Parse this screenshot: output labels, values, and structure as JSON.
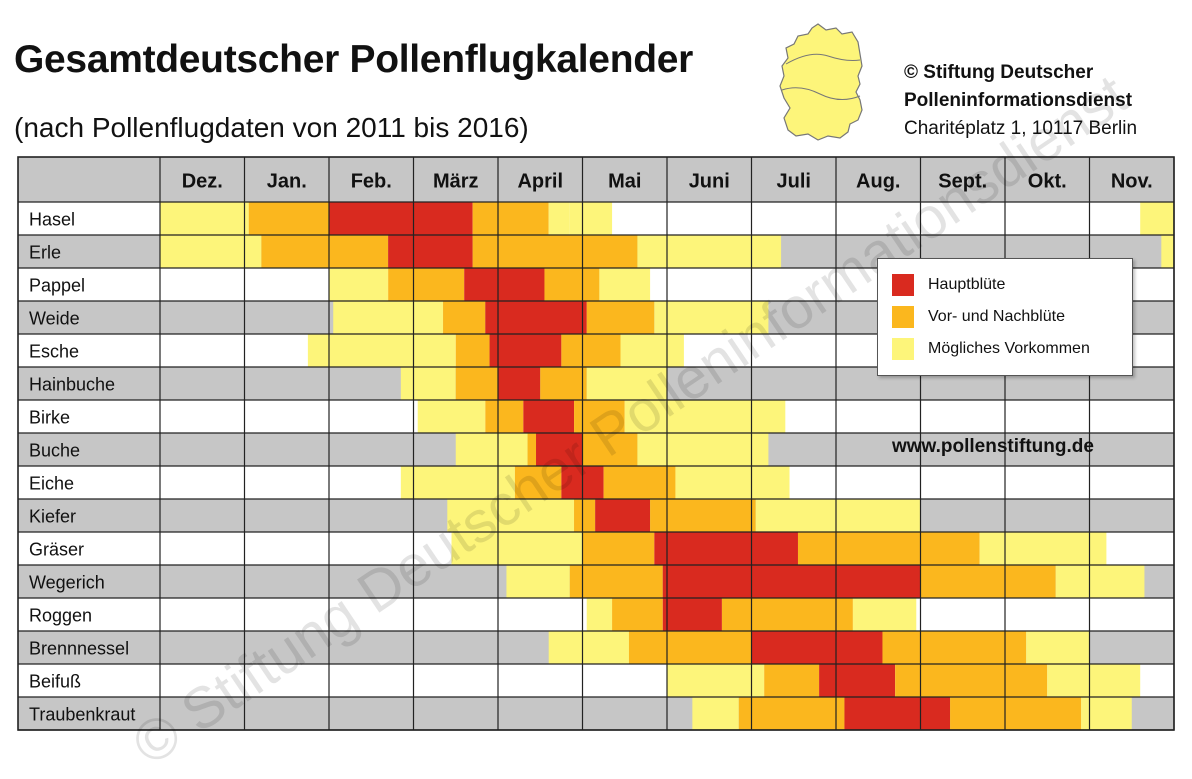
{
  "header": {
    "title": "Gesamtdeutscher Pollenflugkalender",
    "subtitle": "(nach Pollenflugdaten von 2011 bis 2016)",
    "copyright_line1": "© Stiftung Deutscher",
    "copyright_line2": "Polleninformationsdienst",
    "address": "Charitéplatz 1, 10117 Berlin"
  },
  "website": "www.pollenstiftung.de",
  "watermark": "© Stiftung Deutscher Polleninformationsdienst",
  "colors": {
    "hauptbluete": "#d92a1f",
    "vor_nachbluete": "#fbb71e",
    "moegliches_vorkommen": "#fdf57a",
    "header_bg": "#c6c6c6",
    "row_gray": "#c6c6c6",
    "row_white": "#ffffff",
    "grid": "#222222",
    "map_fill": "#fdf57a"
  },
  "legend": {
    "items": [
      {
        "label": "Hauptblüte",
        "color": "#d92a1f"
      },
      {
        "label": "Vor- und Nachblüte",
        "color": "#fbb71e"
      },
      {
        "label": "Mögliches Vorkommen",
        "color": "#fdf57a"
      }
    ]
  },
  "chart_data": {
    "type": "heatmap",
    "title": "Gesamtdeutscher Pollenflugkalender",
    "subtitle": "(nach Pollenflugdaten von 2011 bis 2016)",
    "months": [
      "Dez.",
      "Jan.",
      "Feb.",
      "März",
      "April",
      "Mai",
      "Juni",
      "Juli",
      "Aug.",
      "Sept.",
      "Okt.",
      "Nov."
    ],
    "scale_note": "month index 0 = start of Dez., 12 = end of Nov.; intensity 1 = Mögliches Vorkommen, 2 = Vor- und Nachblüte, 3 = Hauptblüte",
    "rows": [
      {
        "name": "Hasel",
        "segments": [
          [
            0.0,
            1.05,
            1
          ],
          [
            1.05,
            2.0,
            2
          ],
          [
            2.0,
            3.7,
            3
          ],
          [
            3.7,
            4.0,
            2
          ],
          [
            4.0,
            4.6,
            2
          ],
          [
            4.6,
            4.85,
            1
          ],
          [
            4.85,
            5.35,
            1
          ],
          [
            11.6,
            12.0,
            1
          ]
        ]
      },
      {
        "name": "Erle",
        "segments": [
          [
            0.0,
            1.2,
            1
          ],
          [
            1.2,
            2.7,
            2
          ],
          [
            2.7,
            3.7,
            3
          ],
          [
            3.7,
            5.0,
            2
          ],
          [
            5.0,
            5.65,
            2
          ],
          [
            5.65,
            7.35,
            1
          ],
          [
            11.85,
            12.0,
            1
          ]
        ]
      },
      {
        "name": "Pappel",
        "segments": [
          [
            2.0,
            2.7,
            1
          ],
          [
            2.7,
            3.6,
            2
          ],
          [
            3.6,
            4.0,
            3
          ],
          [
            4.0,
            4.55,
            3
          ],
          [
            4.55,
            5.2,
            2
          ],
          [
            5.2,
            5.8,
            1
          ]
        ]
      },
      {
        "name": "Weide",
        "segments": [
          [
            2.05,
            3.35,
            1
          ],
          [
            3.35,
            3.85,
            2
          ],
          [
            3.85,
            5.05,
            3
          ],
          [
            5.05,
            5.85,
            2
          ],
          [
            5.85,
            7.2,
            1
          ]
        ]
      },
      {
        "name": "Esche",
        "segments": [
          [
            1.75,
            3.5,
            1
          ],
          [
            3.5,
            3.9,
            2
          ],
          [
            3.9,
            4.75,
            3
          ],
          [
            4.75,
            5.45,
            2
          ],
          [
            5.45,
            6.2,
            1
          ]
        ]
      },
      {
        "name": "Hainbuche",
        "segments": [
          [
            2.85,
            3.5,
            1
          ],
          [
            3.5,
            4.0,
            2
          ],
          [
            4.0,
            4.5,
            3
          ],
          [
            4.5,
            5.05,
            2
          ],
          [
            5.05,
            6.0,
            1
          ]
        ]
      },
      {
        "name": "Birke",
        "segments": [
          [
            3.05,
            3.85,
            1
          ],
          [
            3.85,
            4.3,
            2
          ],
          [
            4.3,
            4.9,
            3
          ],
          [
            4.9,
            5.5,
            2
          ],
          [
            5.5,
            7.4,
            1
          ]
        ]
      },
      {
        "name": "Buche",
        "segments": [
          [
            3.5,
            4.35,
            1
          ],
          [
            4.35,
            4.45,
            2
          ],
          [
            4.45,
            5.0,
            3
          ],
          [
            5.0,
            5.65,
            2
          ],
          [
            5.65,
            7.2,
            1
          ]
        ]
      },
      {
        "name": "Eiche",
        "segments": [
          [
            2.85,
            4.2,
            1
          ],
          [
            4.2,
            4.75,
            2
          ],
          [
            4.75,
            5.25,
            3
          ],
          [
            5.25,
            6.1,
            2
          ],
          [
            6.1,
            7.45,
            1
          ]
        ]
      },
      {
        "name": "Kiefer",
        "segments": [
          [
            3.4,
            4.9,
            1
          ],
          [
            4.9,
            5.15,
            2
          ],
          [
            5.15,
            5.8,
            3
          ],
          [
            5.8,
            7.05,
            2
          ],
          [
            7.05,
            9.0,
            1
          ]
        ]
      },
      {
        "name": "Gräser",
        "segments": [
          [
            3.45,
            5.0,
            1
          ],
          [
            5.0,
            5.85,
            2
          ],
          [
            5.85,
            7.55,
            3
          ],
          [
            7.55,
            9.7,
            2
          ],
          [
            9.7,
            11.2,
            1
          ]
        ]
      },
      {
        "name": "Wegerich",
        "segments": [
          [
            4.1,
            4.85,
            1
          ],
          [
            4.85,
            5.95,
            2
          ],
          [
            5.95,
            9.0,
            3
          ],
          [
            9.0,
            10.6,
            2
          ],
          [
            10.6,
            11.65,
            1
          ]
        ]
      },
      {
        "name": "Roggen",
        "segments": [
          [
            5.05,
            5.35,
            1
          ],
          [
            5.35,
            5.95,
            2
          ],
          [
            5.95,
            6.65,
            3
          ],
          [
            6.65,
            8.2,
            2
          ],
          [
            8.2,
            8.95,
            1
          ]
        ]
      },
      {
        "name": "Brennnessel",
        "segments": [
          [
            4.6,
            5.55,
            1
          ],
          [
            5.55,
            7.0,
            2
          ],
          [
            7.0,
            8.55,
            3
          ],
          [
            8.55,
            10.25,
            2
          ],
          [
            10.25,
            11.0,
            1
          ]
        ]
      },
      {
        "name": "Beifuß",
        "segments": [
          [
            6.0,
            7.15,
            1
          ],
          [
            7.15,
            7.8,
            2
          ],
          [
            7.8,
            8.7,
            3
          ],
          [
            8.7,
            10.5,
            2
          ],
          [
            10.5,
            11.6,
            1
          ]
        ]
      },
      {
        "name": "Traubenkraut",
        "segments": [
          [
            6.3,
            6.85,
            1
          ],
          [
            6.85,
            8.1,
            2
          ],
          [
            8.1,
            9.35,
            3
          ],
          [
            9.35,
            10.9,
            2
          ],
          [
            10.9,
            11.5,
            1
          ]
        ]
      }
    ]
  }
}
